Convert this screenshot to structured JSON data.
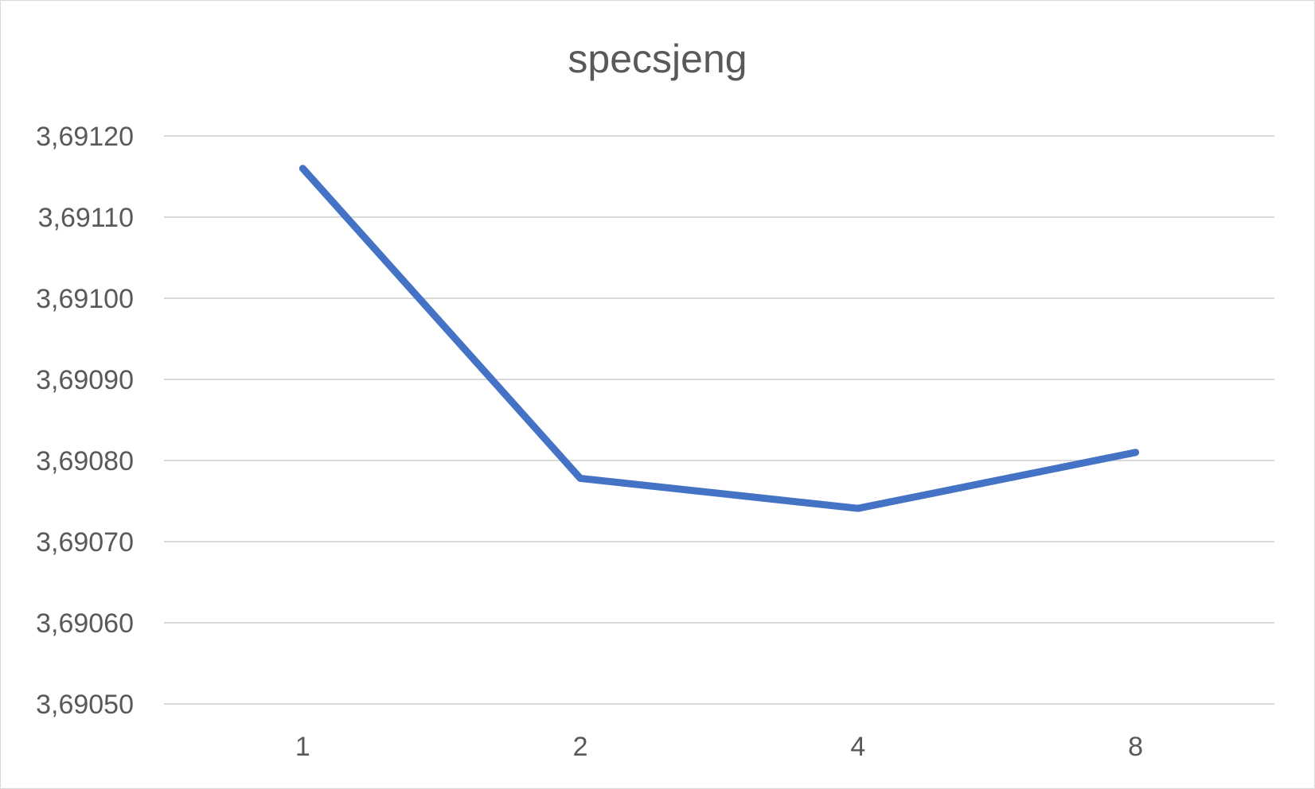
{
  "chart_data": {
    "type": "line",
    "title": "specsjeng",
    "categories": [
      "1",
      "2",
      "4",
      "8"
    ],
    "series": [
      {
        "values": [
          3.69116,
          3.690778,
          3.690741,
          3.69081
        ]
      }
    ],
    "y_tick_labels": [
      "3,69050",
      "3,69060",
      "3,69070",
      "3,69080",
      "3,69090",
      "3,69100",
      "3,69110",
      "3,69120"
    ],
    "ylim": [
      3.6905,
      3.6912
    ],
    "xlabel": "",
    "ylabel": "",
    "grid": true,
    "legend": "none",
    "colors": {
      "line": "#4472c4",
      "grid": "#d9d9d9",
      "text": "#595959"
    }
  }
}
